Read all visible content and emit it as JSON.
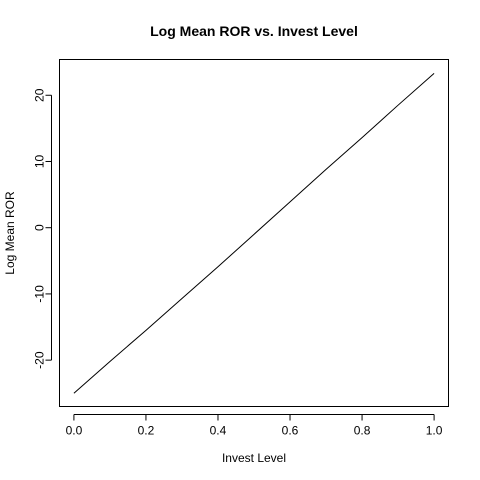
{
  "chart_data": {
    "type": "line",
    "title": "Log Mean ROR vs. Invest Level",
    "xlabel": "Invest Level",
    "ylabel": "Log Mean ROR",
    "xlim": [
      -0.04,
      1.04
    ],
    "ylim": [
      -27.0,
      25.4
    ],
    "x_ticks": [
      0.0,
      0.2,
      0.4,
      0.6,
      0.8,
      1.0
    ],
    "x_tick_labels": [
      "0.0",
      "0.2",
      "0.4",
      "0.6",
      "0.8",
      "1.0"
    ],
    "y_ticks": [
      -20,
      -10,
      0,
      10,
      20
    ],
    "y_tick_labels": [
      "-20",
      "-10",
      "0",
      "10",
      "20"
    ],
    "grid": false,
    "series": [
      {
        "x": [
          0.0,
          0.1,
          0.2,
          0.3,
          0.4,
          0.5,
          0.6,
          0.7,
          0.8,
          0.9,
          1.0
        ],
        "y": [
          -25.0,
          -20.2,
          -15.5,
          -10.7,
          -5.9,
          -1.0,
          3.9,
          8.8,
          13.6,
          18.5,
          23.3
        ]
      }
    ],
    "line_color": "#000000"
  }
}
